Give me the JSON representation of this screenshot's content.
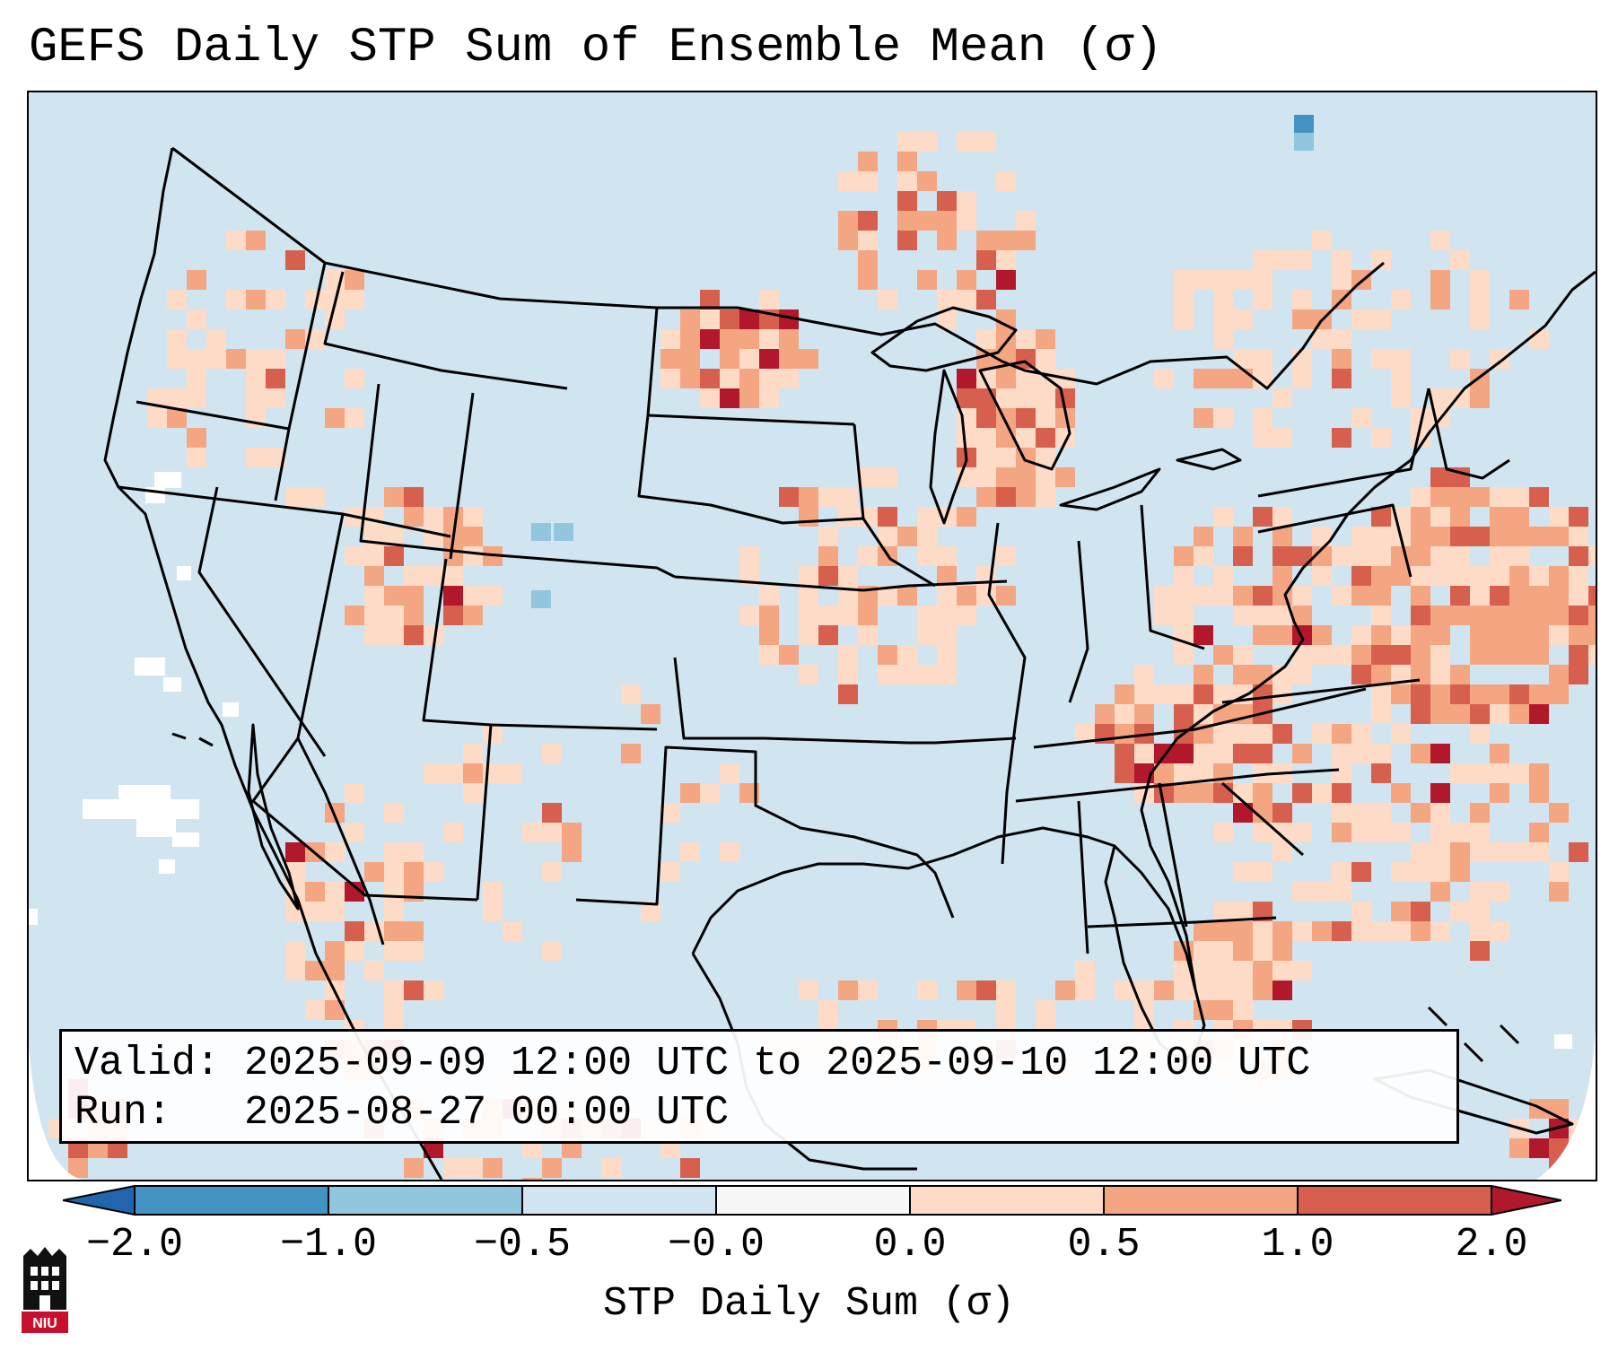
{
  "title": "GEFS Daily STP Sum of Ensemble Mean (σ)",
  "info": {
    "valid_label": "Valid:",
    "valid_value": "2025-09-09 12:00 UTC to 2025-09-10 12:00 UTC",
    "run_label": "Run:",
    "run_value": "2025-08-27 00:00 UTC"
  },
  "colorbar": {
    "label": "STP Daily Sum (σ)",
    "ticks": [
      "−2.0",
      "−1.0",
      "−0.5",
      "−0.0",
      "0.0",
      "0.5",
      "1.0",
      "2.0"
    ],
    "colors": {
      "extend_low": "#2166ac",
      "b1": "#4393c3",
      "b2": "#92c5de",
      "b3": "#d1e5f0",
      "b4": "#f7f7f7",
      "b5": "#fddbc7",
      "b6": "#f4a582",
      "b7": "#d6604d",
      "extend_high": "#b2182b"
    }
  },
  "map": {
    "background": "#d1e5f0",
    "outside_domain": "#ffffff",
    "line_color": "#000000"
  },
  "logo": {
    "text": "NIU",
    "color": "#c8102e"
  }
}
